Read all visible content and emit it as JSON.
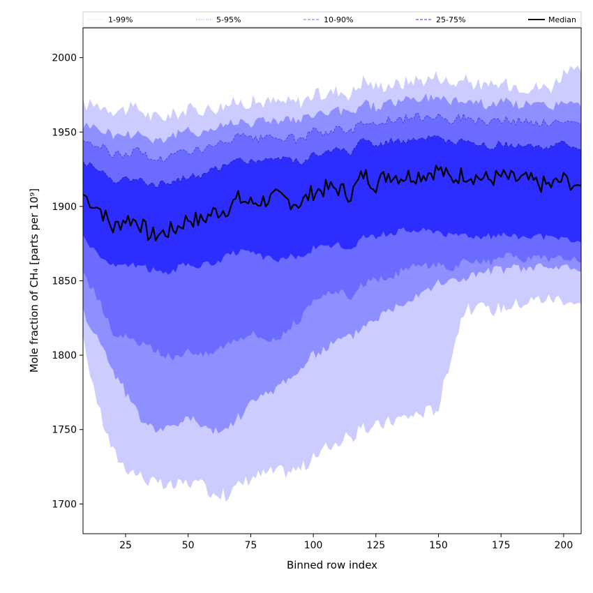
{
  "chart_data": {
    "type": "area",
    "xlabel": "Binned row index",
    "ylabel": "Mole fraction of CH₄ [parts per 10⁹]",
    "xlim": [
      8,
      207
    ],
    "ylim": [
      1680,
      2020
    ],
    "x_ticks": [
      25,
      50,
      75,
      100,
      125,
      150,
      175,
      200
    ],
    "y_ticks": [
      1700,
      1750,
      1800,
      1850,
      1900,
      1950,
      2000
    ],
    "grid": false,
    "legend_position": "top",
    "colors": {
      "band_1_99": "#ccccff",
      "band_5_95": "#8f8fff",
      "band_10_90": "#6b6bff",
      "band_25_75": "#2d2dff",
      "median": "#000000"
    },
    "legend": [
      {
        "label": "1-99%",
        "style": "dotted",
        "color": "#ccccff"
      },
      {
        "label": "5-95%",
        "style": "dotted",
        "color": "#8f8fff"
      },
      {
        "label": "10-90%",
        "style": "dashed",
        "color": "#6b6bff"
      },
      {
        "label": "25-75%",
        "style": "dashed",
        "color": "#2d2dff"
      },
      {
        "label": "Median",
        "style": "solid",
        "color": "#000000"
      }
    ],
    "x": [
      8,
      15,
      20,
      25,
      30,
      35,
      40,
      45,
      50,
      55,
      60,
      65,
      70,
      75,
      80,
      85,
      90,
      95,
      100,
      105,
      110,
      115,
      120,
      125,
      130,
      135,
      140,
      145,
      150,
      155,
      160,
      165,
      170,
      175,
      180,
      185,
      190,
      195,
      200,
      207
    ],
    "series": [
      {
        "name": "Median",
        "values": [
          1908,
          1898,
          1885,
          1892,
          1890,
          1880,
          1882,
          1885,
          1892,
          1890,
          1896,
          1898,
          1905,
          1902,
          1904,
          1906,
          1904,
          1902,
          1910,
          1912,
          1912,
          1908,
          1922,
          1915,
          1922,
          1920,
          1921,
          1922,
          1925,
          1918,
          1922,
          1920,
          1918,
          1920,
          1918,
          1918,
          1915,
          1914,
          1918,
          1914
        ]
      },
      {
        "name": "25-75% lower",
        "values": [
          1880,
          1866,
          1860,
          1860,
          1860,
          1858,
          1855,
          1858,
          1862,
          1860,
          1862,
          1866,
          1870,
          1868,
          1866,
          1864,
          1866,
          1866,
          1872,
          1872,
          1874,
          1872,
          1880,
          1880,
          1882,
          1884,
          1884,
          1884,
          1884,
          1880,
          1882,
          1880,
          1880,
          1882,
          1880,
          1880,
          1880,
          1878,
          1878,
          1876
        ]
      },
      {
        "name": "25-75% upper",
        "values": [
          1930,
          1924,
          1918,
          1918,
          1920,
          1915,
          1915,
          1918,
          1920,
          1920,
          1925,
          1928,
          1932,
          1930,
          1932,
          1932,
          1932,
          1930,
          1935,
          1936,
          1938,
          1936,
          1945,
          1940,
          1944,
          1944,
          1944,
          1945,
          1946,
          1942,
          1944,
          1942,
          1940,
          1942,
          1940,
          1940,
          1940,
          1940,
          1942,
          1938
        ]
      },
      {
        "name": "10-90% lower",
        "values": [
          1855,
          1835,
          1815,
          1812,
          1808,
          1805,
          1800,
          1798,
          1805,
          1800,
          1802,
          1808,
          1812,
          1815,
          1812,
          1810,
          1818,
          1825,
          1835,
          1840,
          1842,
          1840,
          1848,
          1850,
          1852,
          1856,
          1860,
          1860,
          1862,
          1858,
          1862,
          1862,
          1862,
          1866,
          1866,
          1864,
          1866,
          1864,
          1866,
          1862
        ]
      },
      {
        "name": "10-90% upper",
        "values": [
          1945,
          1940,
          1935,
          1935,
          1938,
          1932,
          1932,
          1935,
          1938,
          1938,
          1940,
          1943,
          1947,
          1945,
          1945,
          1946,
          1946,
          1945,
          1950,
          1950,
          1952,
          1950,
          1958,
          1955,
          1958,
          1958,
          1960,
          1960,
          1962,
          1958,
          1960,
          1958,
          1956,
          1958,
          1957,
          1957,
          1956,
          1955,
          1958,
          1955
        ]
      },
      {
        "name": "5-95% lower",
        "values": [
          1830,
          1808,
          1790,
          1775,
          1760,
          1752,
          1750,
          1752,
          1760,
          1752,
          1748,
          1750,
          1758,
          1768,
          1772,
          1778,
          1785,
          1790,
          1800,
          1805,
          1810,
          1812,
          1820,
          1825,
          1830,
          1835,
          1840,
          1845,
          1848,
          1850,
          1852,
          1854,
          1856,
          1858,
          1858,
          1858,
          1860,
          1858,
          1860,
          1856
        ]
      },
      {
        "name": "5-95% upper",
        "values": [
          1955,
          1952,
          1948,
          1948,
          1950,
          1945,
          1945,
          1948,
          1950,
          1950,
          1952,
          1955,
          1958,
          1956,
          1958,
          1958,
          1958,
          1957,
          1962,
          1962,
          1964,
          1962,
          1970,
          1966,
          1970,
          1970,
          1972,
          1972,
          1974,
          1970,
          1972,
          1970,
          1968,
          1970,
          1969,
          1968,
          1968,
          1967,
          1970,
          1967
        ]
      },
      {
        "name": "1-99% lower",
        "values": [
          1810,
          1760,
          1735,
          1725,
          1720,
          1715,
          1712,
          1712,
          1715,
          1712,
          1708,
          1706,
          1712,
          1718,
          1720,
          1722,
          1722,
          1724,
          1730,
          1738,
          1742,
          1745,
          1750,
          1752,
          1755,
          1758,
          1760,
          1762,
          1765,
          1800,
          1830,
          1832,
          1830,
          1832,
          1834,
          1836,
          1838,
          1838,
          1838,
          1835
        ]
      },
      {
        "name": "1-99% upper",
        "values": [
          1968,
          1968,
          1965,
          1965,
          1966,
          1960,
          1960,
          1962,
          1965,
          1965,
          1966,
          1968,
          1970,
          1970,
          1970,
          1970,
          1970,
          1970,
          1975,
          1975,
          1978,
          1975,
          1985,
          1980,
          1982,
          1982,
          1985,
          1985,
          1988,
          1982,
          1985,
          1982,
          1980,
          1982,
          1982,
          1980,
          1980,
          1980,
          1990,
          1990
        ]
      }
    ]
  }
}
